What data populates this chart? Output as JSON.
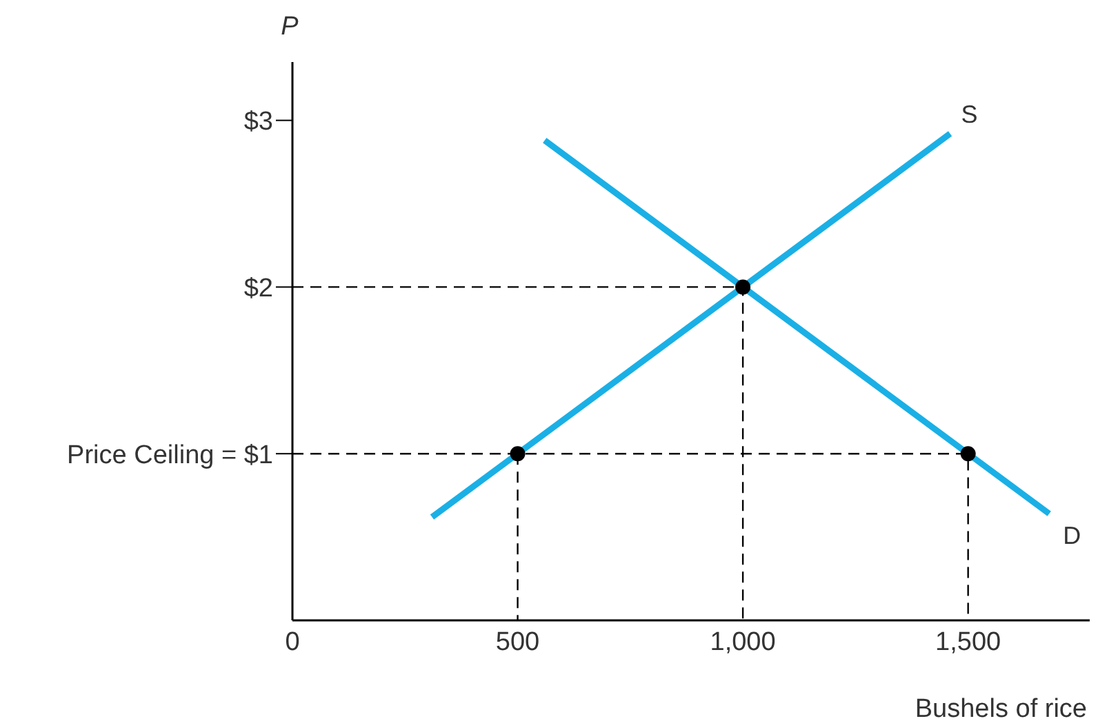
{
  "chart_data": {
    "type": "line",
    "xlabel": "Bushels of rice",
    "ylabel": "P",
    "xlim": [
      0,
      1770
    ],
    "ylim": [
      0,
      3.35
    ],
    "xticks": [
      0,
      500,
      {
        "value": 1000,
        "label": "1,000"
      },
      {
        "value": 1500,
        "label": "1,500"
      }
    ],
    "yticks": [
      {
        "value": 1,
        "label": "Price Ceiling = $1"
      },
      {
        "value": 2,
        "label": "$2"
      },
      {
        "value": 3,
        "label": "$3"
      }
    ],
    "grid": false,
    "legend": false,
    "marker": "none",
    "line_style": "solid",
    "series": [
      {
        "name": "S",
        "color": "#1ab0e6",
        "x": [
          310,
          1460
        ],
        "values": [
          0.62,
          2.92
        ]
      },
      {
        "name": "D",
        "color": "#1ab0e6",
        "x": [
          560,
          1680
        ],
        "values": [
          2.88,
          0.64
        ]
      },
      {
        "type": "line",
        "color": "#000000",
        "line_style": "dashed",
        "x": [
          0,
          1000,
          1000
        ],
        "values": [
          2,
          2,
          0
        ]
      },
      {
        "type": "line",
        "color": "#000000",
        "line_style": "dashed",
        "x": [
          0,
          1500,
          1500
        ],
        "values": [
          1,
          1,
          0
        ]
      },
      {
        "type": "line",
        "color": "#000000",
        "line_style": "dashed",
        "x": [
          500,
          500
        ],
        "values": [
          1,
          0
        ]
      },
      {
        "type": "scatter",
        "color": "#000000",
        "marker": "circle",
        "x": [
          500,
          1000,
          1500
        ],
        "values": [
          1,
          2,
          1
        ]
      }
    ]
  }
}
